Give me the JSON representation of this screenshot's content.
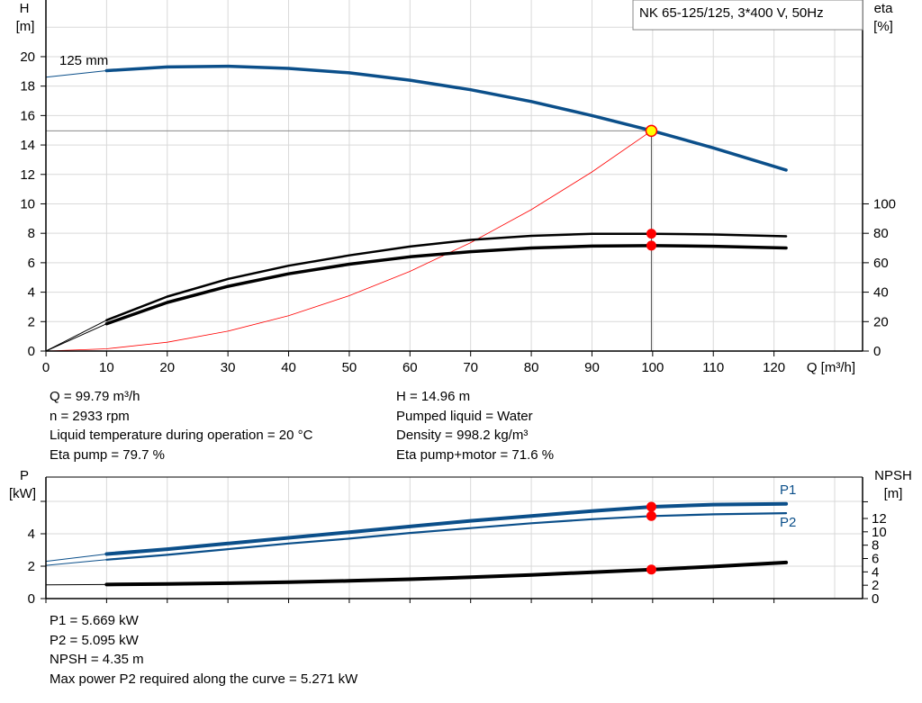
{
  "chart_data": [
    {
      "type": "line",
      "title": "NK 65-125/125, 3*400 V, 50Hz",
      "xlabel": "Q [m³/h]",
      "ylabel": "H\n[m]",
      "ylabel_unit": "[m]",
      "ylabel_name": "H",
      "y2label_name": "eta",
      "y2label_unit": "[%]",
      "xlim": [
        0,
        134.6
      ],
      "ylim": [
        0,
        23.85
      ],
      "y2lim": [
        0,
        238.5
      ],
      "x_ticks": [
        0,
        10,
        20,
        30,
        40,
        50,
        60,
        70,
        80,
        90,
        100,
        110,
        120
      ],
      "y_ticks": [
        0,
        2,
        4,
        6,
        8,
        10,
        12,
        14,
        16,
        18,
        20
      ],
      "y2_ticks": [
        0,
        20,
        40,
        60,
        80,
        100
      ],
      "grid": true,
      "impeller_label": "125 mm",
      "series": [
        {
          "key": "H",
          "axis": "left",
          "color": "#0b4f8a",
          "x": [
            0,
            10,
            20,
            30,
            40,
            50,
            60,
            70,
            80,
            90,
            100,
            110,
            122
          ],
          "y": [
            18.6,
            19.05,
            19.3,
            19.35,
            19.2,
            18.9,
            18.4,
            17.75,
            16.95,
            16.0,
            14.96,
            13.8,
            12.3
          ]
        },
        {
          "key": "eta_pump",
          "axis": "right",
          "color": "#000000",
          "x": [
            0,
            10,
            20,
            30,
            40,
            50,
            60,
            70,
            80,
            90,
            100,
            110,
            122
          ],
          "y": [
            0,
            21,
            37,
            49,
            58,
            65,
            71,
            75.5,
            78.3,
            79.6,
            79.7,
            79.2,
            78
          ]
        },
        {
          "key": "eta_pump_motor",
          "axis": "right",
          "color": "#000000",
          "x": [
            0,
            10,
            20,
            30,
            40,
            50,
            60,
            70,
            80,
            90,
            100,
            110,
            122
          ],
          "y": [
            0,
            18.5,
            33,
            44,
            52.5,
            59,
            64,
            67.5,
            70,
            71.3,
            71.6,
            71.2,
            70
          ]
        },
        {
          "key": "system",
          "axis": "left",
          "color": "#ff0000",
          "x": [
            0,
            10,
            20,
            30,
            40,
            50,
            60,
            70,
            80,
            90,
            99.79
          ],
          "y": [
            0,
            0.15,
            0.6,
            1.35,
            2.4,
            3.76,
            5.41,
            7.36,
            9.61,
            12.17,
            14.96
          ]
        }
      ],
      "duty_point": {
        "Q": 99.79,
        "H": 14.96,
        "eta_pump": 79.7,
        "eta_pump_motor": 71.6
      }
    },
    {
      "type": "line",
      "xlabel": "",
      "ylabel_name": "P",
      "ylabel_unit": "[kW]",
      "y2label_name": "NPSH",
      "y2label_unit": "[m]",
      "xlim": [
        0,
        134.6
      ],
      "ylim": [
        0,
        7.5
      ],
      "y2lim": [
        0,
        18.2
      ],
      "x_ticks": [
        0,
        10,
        20,
        30,
        40,
        50,
        60,
        70,
        80,
        90,
        100,
        110,
        120
      ],
      "y_ticks": [
        0,
        2,
        4
      ],
      "y_grid": [
        2,
        4,
        6
      ],
      "y2_ticks": [
        0,
        2,
        4,
        6,
        8,
        10,
        12
      ],
      "grid": true,
      "series": [
        {
          "key": "P1",
          "name": "P1",
          "axis": "left",
          "color": "#0b4f8a",
          "x": [
            0,
            10,
            20,
            30,
            40,
            50,
            60,
            70,
            80,
            90,
            100,
            110,
            122
          ],
          "y": [
            2.3,
            2.75,
            3.05,
            3.4,
            3.75,
            4.1,
            4.45,
            4.8,
            5.1,
            5.4,
            5.669,
            5.8,
            5.85
          ]
        },
        {
          "key": "P2",
          "name": "P2",
          "axis": "left",
          "color": "#0b4f8a",
          "x": [
            0,
            10,
            20,
            30,
            40,
            50,
            60,
            70,
            80,
            90,
            100,
            110,
            122
          ],
          "y": [
            2.05,
            2.4,
            2.7,
            3.05,
            3.4,
            3.7,
            4.05,
            4.35,
            4.65,
            4.9,
            5.095,
            5.2,
            5.271
          ]
        },
        {
          "key": "NPSH",
          "axis": "right",
          "color": "#000000",
          "x": [
            0,
            10,
            20,
            30,
            40,
            50,
            60,
            70,
            80,
            90,
            100,
            110,
            122
          ],
          "y": [
            2.05,
            2.1,
            2.2,
            2.3,
            2.45,
            2.65,
            2.9,
            3.2,
            3.55,
            3.95,
            4.35,
            4.8,
            5.4
          ]
        }
      ],
      "duty_point": {
        "Q": 99.79,
        "P1": 5.669,
        "P2": 5.095,
        "NPSH": 4.35
      }
    }
  ],
  "info_top": {
    "left": [
      "Q = 99.79 m³/h",
      "n = 2933 rpm",
      "Liquid temperature during operation = 20 °C",
      "Eta pump = 79.7 %"
    ],
    "right": [
      "H = 14.96 m",
      "Pumped liquid = Water",
      "Density = 998.2 kg/m³",
      "Eta pump+motor = 71.6 %"
    ]
  },
  "info_bottom": [
    "P1 = 5.669 kW",
    "P2 = 5.095 kW",
    "NPSH = 4.35 m",
    "Max power P2 required along the curve = 5.271 kW"
  ],
  "colors": {
    "curve_blue": "#0b4f8a",
    "duty_dot": "#ff0000",
    "duty_fill_main": "#ffff00",
    "grid": "#d9d9d9"
  }
}
